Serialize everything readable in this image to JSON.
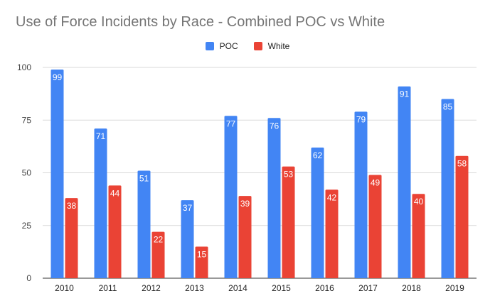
{
  "chart_data": {
    "type": "bar",
    "title": "Use of Force Incidents by Race - Combined POC vs White",
    "categories": [
      "2010",
      "2011",
      "2012",
      "2013",
      "2014",
      "2015",
      "2016",
      "2017",
      "2018",
      "2019"
    ],
    "series": [
      {
        "name": "POC",
        "color": "#4285f4",
        "values": [
          99,
          71,
          51,
          37,
          77,
          76,
          62,
          79,
          91,
          85
        ]
      },
      {
        "name": "White",
        "color": "#ea4335",
        "values": [
          38,
          44,
          22,
          15,
          39,
          53,
          42,
          49,
          40,
          58
        ]
      }
    ],
    "yticks": [
      "0",
      "25",
      "50",
      "75",
      "100"
    ],
    "ylim": [
      0,
      100
    ],
    "grid": true,
    "legend_position": "top-center",
    "data_labels": true
  }
}
